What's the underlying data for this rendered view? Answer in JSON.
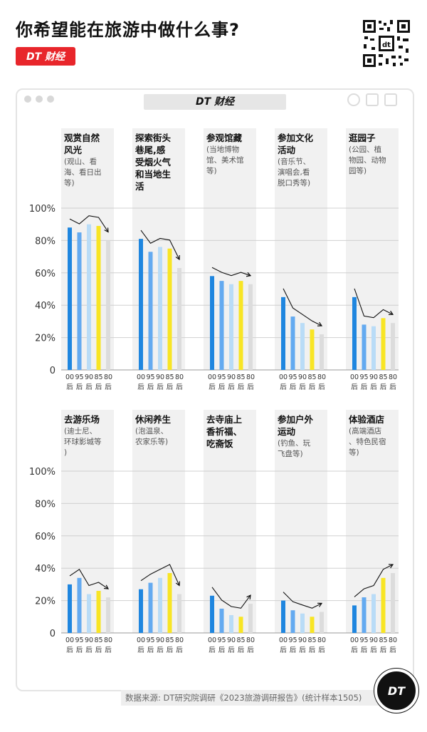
{
  "header": {
    "title": "你希望能在旅游中做什么事?",
    "brand": "DT 财经"
  },
  "window": {
    "title": "DT 财经"
  },
  "footer": {
    "source": "数据来源: DT研究院调研《2023旅游调研报告》(统计样本1505)"
  },
  "badge": "DT",
  "colors": [
    "#1f86df",
    "#64aaf0",
    "#b9dcf7",
    "#f8e524",
    "#dcdcdc"
  ],
  "chart_data": [
    {
      "type": "bar",
      "ylim": [
        0,
        100
      ],
      "yticks": [
        "100%",
        "80%",
        "60%",
        "40%",
        "20%",
        "0"
      ],
      "categories": [
        "00 后",
        "95 后",
        "90 后",
        "85 后",
        "80 后"
      ],
      "panels": [
        {
          "label_bold": "观赏自然风光",
          "label_note": "(观山、看海、看日出等)",
          "values": [
            88,
            85,
            90,
            89,
            80
          ]
        },
        {
          "label_bold": "探索街头巷尾,感受烟火气和当地生活",
          "label_note": "",
          "values": [
            81,
            73,
            76,
            75,
            63
          ]
        },
        {
          "label_bold": "参观馆藏",
          "label_note": "(当地博物馆、美术馆等)",
          "values": [
            58,
            55,
            53,
            55,
            53
          ]
        },
        {
          "label_bold": "参加文化活动",
          "label_note": "(音乐节、演唱会,看脱口秀等)",
          "values": [
            45,
            33,
            29,
            25,
            22
          ]
        },
        {
          "label_bold": "逛园子",
          "label_note": "(公园、植物园、动物园等)",
          "values": [
            45,
            28,
            27,
            32,
            29
          ]
        }
      ]
    },
    {
      "type": "bar",
      "ylim": [
        0,
        100
      ],
      "yticks": [
        "100%",
        "80%",
        "60%",
        "40%",
        "20%",
        "0"
      ],
      "categories": [
        "00 后",
        "95 后",
        "90 后",
        "85 后",
        "80 后"
      ],
      "panels": [
        {
          "label_bold": "去游乐场",
          "label_note": "(迪士尼、环球影城等)",
          "values": [
            30,
            34,
            24,
            26,
            22
          ]
        },
        {
          "label_bold": "休闲养生",
          "label_note": "(泡温泉、农家乐等)",
          "values": [
            27,
            31,
            34,
            37,
            24
          ]
        },
        {
          "label_bold": "去寺庙上香祈福、吃斋饭",
          "label_note": "",
          "values": [
            23,
            15,
            11,
            10,
            18
          ]
        },
        {
          "label_bold": "参加户外运动",
          "label_note": "(钓鱼、玩飞盘等)",
          "values": [
            20,
            14,
            12,
            10,
            13
          ]
        },
        {
          "label_bold": "体验酒店",
          "label_note": "(高端酒店、特色民宿等)",
          "values": [
            17,
            22,
            24,
            34,
            37
          ]
        }
      ]
    }
  ]
}
